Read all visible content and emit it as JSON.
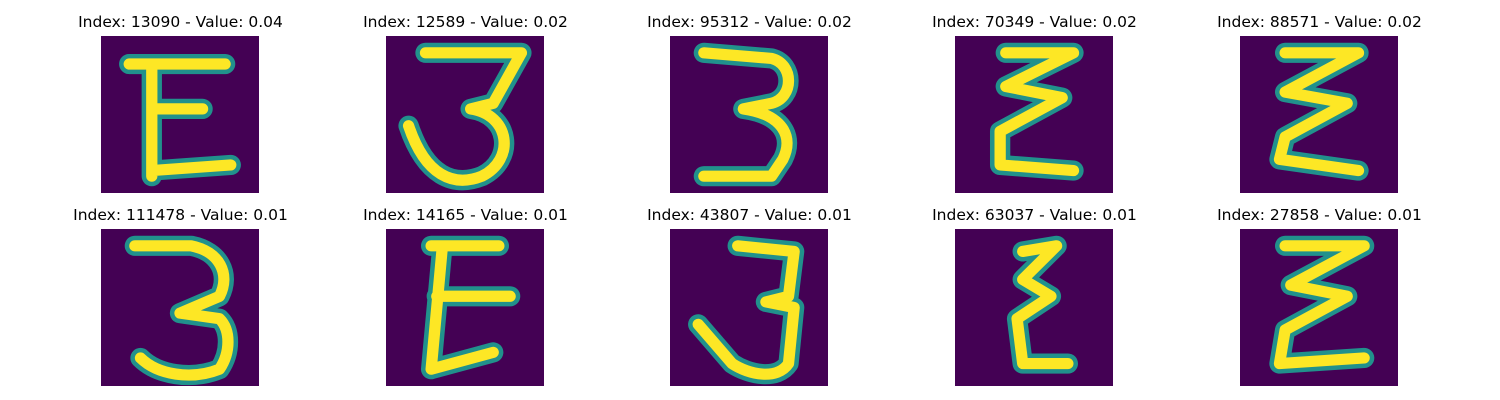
{
  "palette": {
    "background": "#440154",
    "mid": "#21918c",
    "high": "#fde725"
  },
  "items": [
    {
      "label": "Index: 13090 - Value: 0.04",
      "glyph": "E"
    },
    {
      "label": "Index: 12589 - Value: 0.02",
      "glyph": "3"
    },
    {
      "label": "Index: 95312 - Value: 0.02",
      "glyph": "3"
    },
    {
      "label": "Index: 70349 - Value: 0.02",
      "glyph": "ε"
    },
    {
      "label": "Index: 88571 - Value: 0.02",
      "glyph": "ε"
    },
    {
      "label": "Index: 111478 - Value: 0.01",
      "glyph": "3"
    },
    {
      "label": "Index: 14165 - Value: 0.01",
      "glyph": "E"
    },
    {
      "label": "Index: 43807 - Value: 0.01",
      "glyph": "3"
    },
    {
      "label": "Index: 63037 - Value: 0.01",
      "glyph": "ε"
    },
    {
      "label": "Index: 27858 - Value: 0.01",
      "glyph": "Σ"
    }
  ]
}
